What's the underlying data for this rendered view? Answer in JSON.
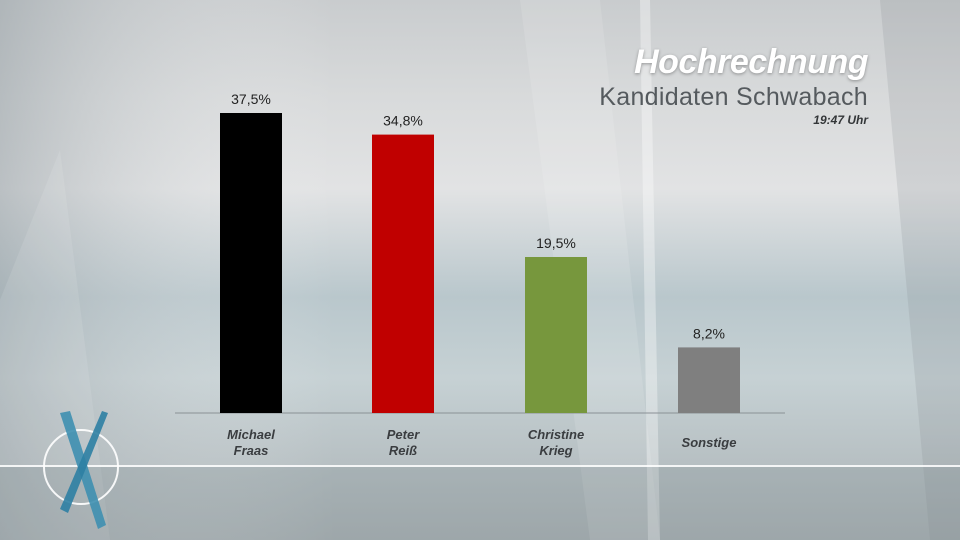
{
  "header": {
    "title": "Hochrechnung",
    "subtitle": "Kandidaten Schwabach",
    "time": "19:47 Uhr"
  },
  "logo": {
    "icon": "ballot-x-icon"
  },
  "colors": {
    "fraas": "#000000",
    "reiss": "#c00000",
    "krieg": "#77973d",
    "sonstige": "#7f7f7f"
  },
  "chart_data": {
    "type": "bar",
    "title": "Hochrechnung",
    "subtitle": "Kandidaten Schwabach",
    "ylim": [
      0,
      40
    ],
    "grid": false,
    "categories": [
      {
        "lines": [
          "Michael",
          "Fraas"
        ],
        "value": 37.5,
        "label": "37,5%",
        "color": "#000000"
      },
      {
        "lines": [
          "Peter",
          "Reiß"
        ],
        "value": 34.8,
        "label": "34,8%",
        "color": "#c00000"
      },
      {
        "lines": [
          "Christine",
          "Krieg"
        ],
        "value": 19.5,
        "label": "19,5%",
        "color": "#77973d"
      },
      {
        "lines": [
          "Sonstige"
        ],
        "value": 8.2,
        "label": "8,2%",
        "color": "#7f7f7f"
      }
    ]
  }
}
